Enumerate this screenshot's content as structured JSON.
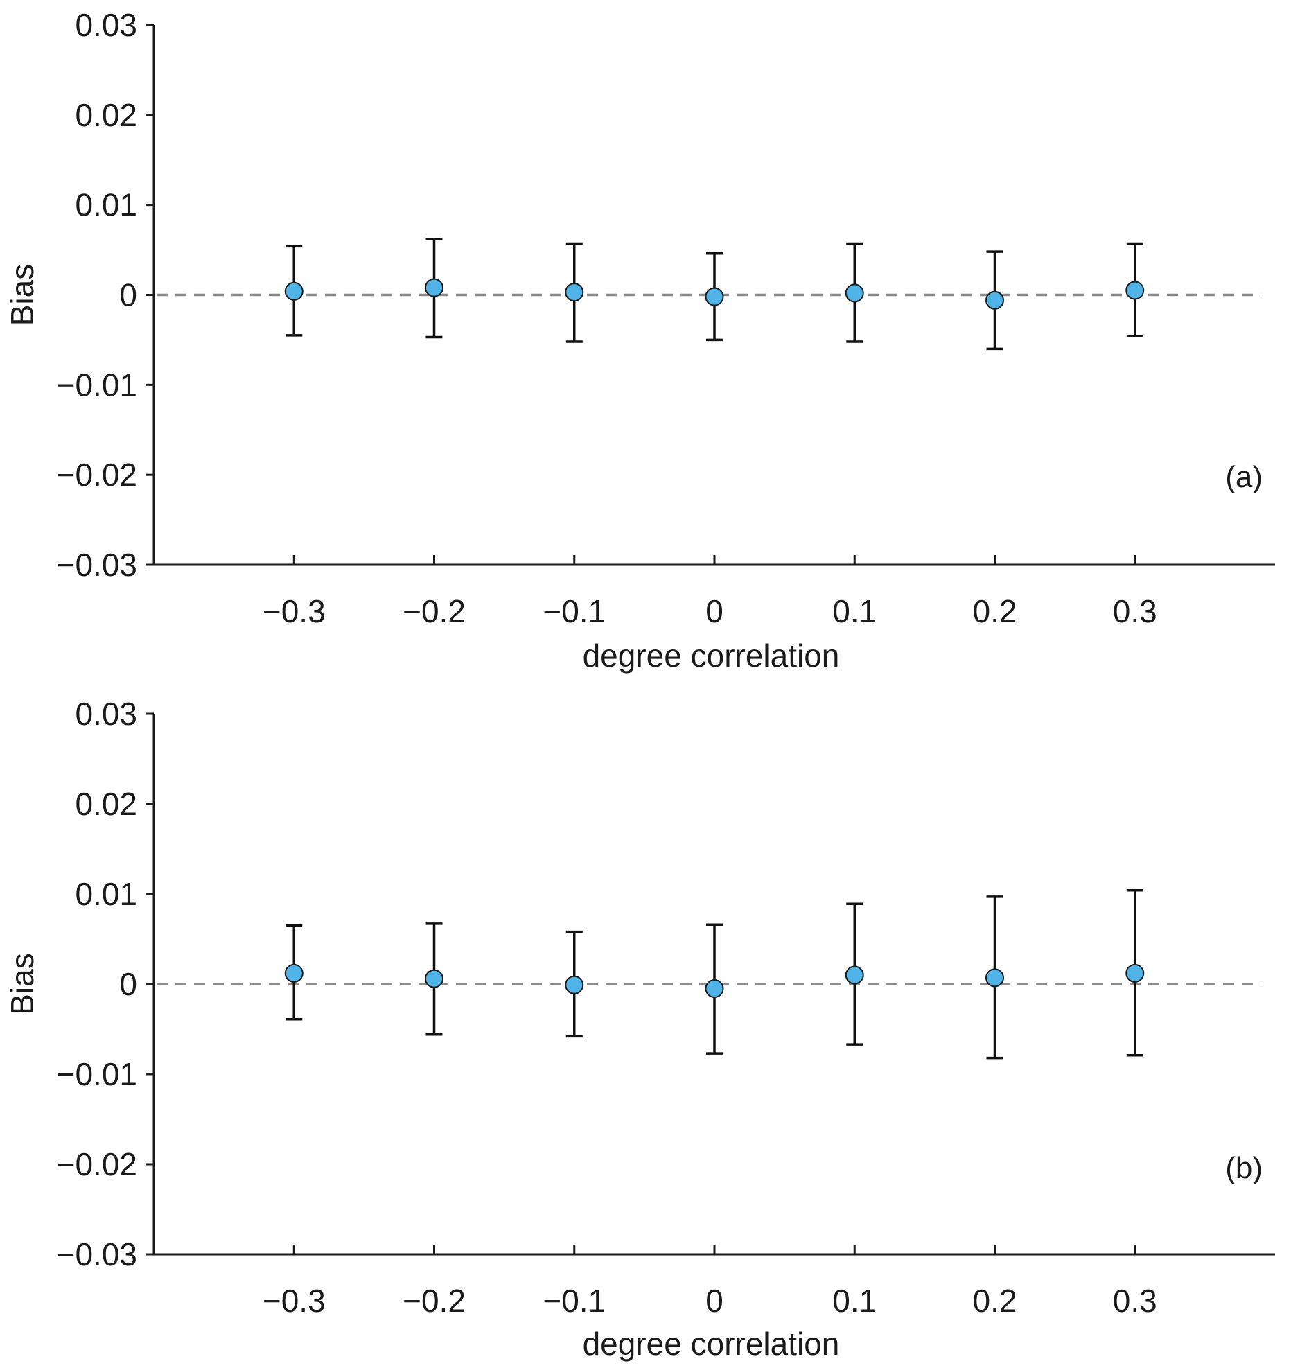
{
  "chart_data": [
    {
      "type": "scatter",
      "panel_label": "(a)",
      "xlabel": "degree correlation",
      "ylabel": "Bias",
      "x_tick_labels": [
        "−0.3",
        "−0.2",
        "−0.1",
        "0",
        "0.1",
        "0.2",
        "0.3"
      ],
      "y_tick_labels": [
        "0.03",
        "0.02",
        "0.01",
        "0",
        "−0.01",
        "−0.02",
        "−0.03"
      ],
      "x": [
        -0.3,
        -0.2,
        -0.1,
        0,
        0.1,
        0.2,
        0.3
      ],
      "y": [
        0.0004,
        0.0008,
        0.0003,
        -0.0002,
        0.0002,
        -0.0006,
        0.0005
      ],
      "err_low": [
        -0.0045,
        -0.0047,
        -0.0052,
        -0.005,
        -0.0052,
        -0.006,
        -0.0046
      ],
      "err_high": [
        0.0054,
        0.0062,
        0.0057,
        0.0046,
        0.0057,
        0.0048,
        0.0057
      ],
      "xlim": [
        -0.4,
        0.4
      ],
      "ylim": [
        -0.03,
        0.03
      ],
      "y_ticks": [
        0.03,
        0.02,
        0.01,
        0,
        -0.01,
        -0.02,
        -0.03
      ],
      "reference_line": 0,
      "marker_color": "#4fb3e8",
      "grid": false
    },
    {
      "type": "scatter",
      "panel_label": "(b)",
      "xlabel": "degree correlation",
      "ylabel": "Bias",
      "x_tick_labels": [
        "−0.3",
        "−0.2",
        "−0.1",
        "0",
        "0.1",
        "0.2",
        "0.3"
      ],
      "y_tick_labels": [
        "0.03",
        "0.02",
        "0.01",
        "0",
        "−0.01",
        "−0.02",
        "−0.03"
      ],
      "x": [
        -0.3,
        -0.2,
        -0.1,
        0,
        0.1,
        0.2,
        0.3
      ],
      "y": [
        0.0012,
        0.0006,
        -0.0001,
        -0.0005,
        0.001,
        0.0007,
        0.0012
      ],
      "err_low": [
        -0.0039,
        -0.0056,
        -0.0058,
        -0.0077,
        -0.0067,
        -0.0082,
        -0.0079
      ],
      "err_high": [
        0.0065,
        0.0067,
        0.0058,
        0.0066,
        0.0089,
        0.0097,
        0.0104
      ],
      "xlim": [
        -0.4,
        0.4
      ],
      "ylim": [
        -0.03,
        0.03
      ],
      "y_ticks": [
        0.03,
        0.02,
        0.01,
        0,
        -0.01,
        -0.02,
        -0.03
      ],
      "reference_line": 0,
      "marker_color": "#4fb3e8",
      "grid": false
    }
  ]
}
